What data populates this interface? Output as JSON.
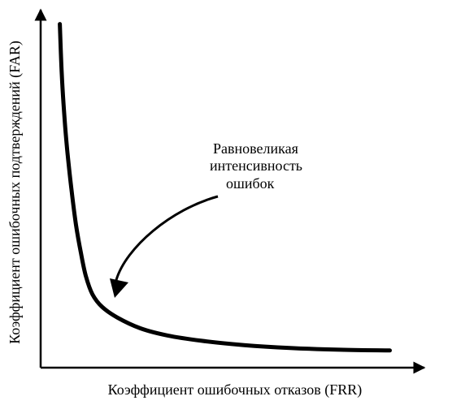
{
  "chart_data": {
    "type": "line",
    "xlabel": "Коэффициент ошибочных отказов (FRR)",
    "ylabel": "Коэффициент ошибочных подтверждений (FAR)",
    "grid": false,
    "series": [
      {
        "values_note": "",
        "points": [
          [
            0.05,
            0.96
          ],
          [
            0.055,
            0.82
          ],
          [
            0.062,
            0.7
          ],
          [
            0.07,
            0.6
          ],
          [
            0.08,
            0.5
          ],
          [
            0.092,
            0.4
          ],
          [
            0.105,
            0.32
          ],
          [
            0.118,
            0.255
          ],
          [
            0.135,
            0.205
          ],
          [
            0.16,
            0.17
          ],
          [
            0.2,
            0.14
          ],
          [
            0.26,
            0.11
          ],
          [
            0.33,
            0.09
          ],
          [
            0.42,
            0.075
          ],
          [
            0.53,
            0.063
          ],
          [
            0.65,
            0.055
          ],
          [
            0.78,
            0.05
          ],
          [
            0.91,
            0.048
          ]
        ]
      }
    ],
    "xlim": [
      0,
      1
    ],
    "ylim": [
      0,
      1
    ],
    "annotation": {
      "lines": [
        "Равновеликая",
        "интенсивность",
        "ошибок"
      ],
      "points_to": [
        0.16,
        0.17
      ]
    },
    "colors": {
      "curve": "#000000",
      "axes": "#000000",
      "text": "#000000"
    }
  }
}
